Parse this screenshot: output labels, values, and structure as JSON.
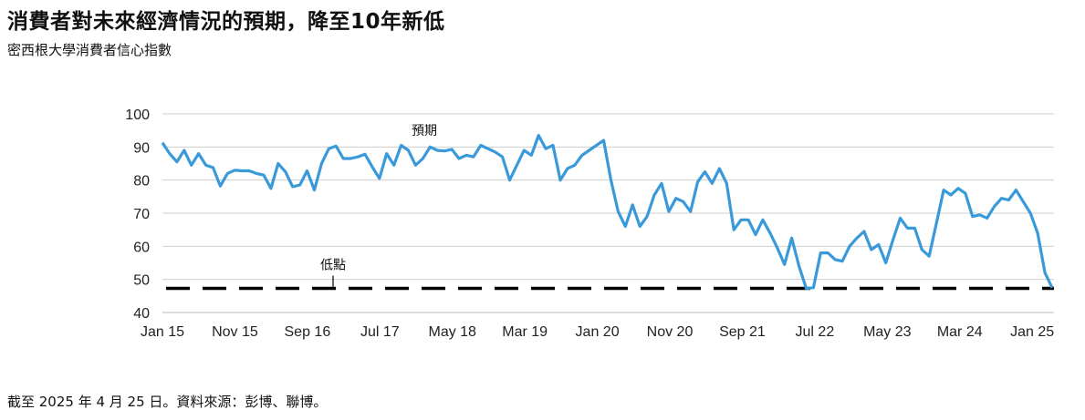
{
  "title": "消費者對未來經濟情況的預期，降至10年新低",
  "subtitle": "密西根大學消費者信心指數",
  "source": "截至 2025 年 4 月 25 日。資料來源：彭博、聯博。",
  "chart_data": {
    "type": "line",
    "title": "消費者對未來經濟情況的預期，降至10年新低",
    "xlabel": "",
    "ylabel": "",
    "ylim": [
      40,
      100
    ],
    "yticks": [
      40,
      50,
      60,
      70,
      80,
      90,
      100
    ],
    "xlim": [
      "2015-01",
      "2025-04"
    ],
    "xticks": [
      {
        "date": "2015-01",
        "label": "Jan 15"
      },
      {
        "date": "2015-11",
        "label": "Nov 15"
      },
      {
        "date": "2016-09",
        "label": "Sep 16"
      },
      {
        "date": "2017-07",
        "label": "Jul 17"
      },
      {
        "date": "2018-05",
        "label": "May 18"
      },
      {
        "date": "2019-03",
        "label": "Mar 19"
      },
      {
        "date": "2020-01",
        "label": "Jan 20"
      },
      {
        "date": "2020-11",
        "label": "Nov 20"
      },
      {
        "date": "2021-09",
        "label": "Sep 21"
      },
      {
        "date": "2022-07",
        "label": "Jul 22"
      },
      {
        "date": "2023-05",
        "label": "May 23"
      },
      {
        "date": "2024-03",
        "label": "Mar 24"
      },
      {
        "date": "2025-01",
        "label": "Jan 25"
      }
    ],
    "grid": true,
    "series": [
      {
        "name": "預期",
        "color": "#3a9ad9",
        "values": [
          91.3,
          88.0,
          85.5,
          89.0,
          84.5,
          88.0,
          84.5,
          83.8,
          78.2,
          82.0,
          83.0,
          82.8,
          82.8,
          82.0,
          81.5,
          77.5,
          85.0,
          82.5,
          78.0,
          78.5,
          82.8,
          77.0,
          85.0,
          89.5,
          90.3,
          86.5,
          86.5,
          87.0,
          87.8,
          84.0,
          80.5,
          88.0,
          84.5,
          90.5,
          89.0,
          84.5,
          86.5,
          90.0,
          89.0,
          88.8,
          89.3,
          86.5,
          87.5,
          87.0,
          90.5,
          89.5,
          88.5,
          87.0,
          80.0,
          84.5,
          89.0,
          87.5,
          93.5,
          89.5,
          90.5,
          80.0,
          83.5,
          84.5,
          87.5,
          89.0,
          90.5,
          92.0,
          80.0,
          70.5,
          66.0,
          72.5,
          66.0,
          69.0,
          75.5,
          79.0,
          70.5,
          74.5,
          73.5,
          70.5,
          79.5,
          82.5,
          79.0,
          83.5,
          79.0,
          65.0,
          68.0,
          68.0,
          63.5,
          68.0,
          64.0,
          59.5,
          54.5,
          62.5,
          54.0,
          47.3,
          47.5,
          58.0,
          58.0,
          56.0,
          55.5,
          60.0,
          62.5,
          64.5,
          59.0,
          60.5,
          55.0,
          62.0,
          68.5,
          65.5,
          65.5,
          59.0,
          57.0,
          67.0,
          77.0,
          75.5,
          77.5,
          76.0,
          69.0,
          69.5,
          68.5,
          72.0,
          74.5,
          74.0,
          77.0,
          73.5,
          70.0,
          64.0,
          52.0,
          47.5
        ]
      }
    ],
    "reference_line": {
      "label": "低點",
      "value": 47.3,
      "style": "dashed",
      "color": "#000000"
    }
  }
}
